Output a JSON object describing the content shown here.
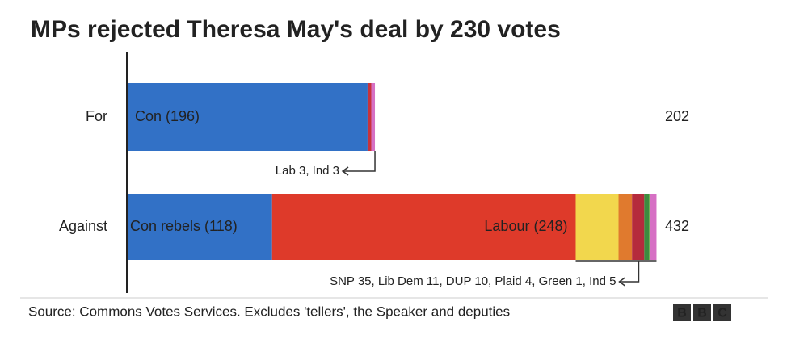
{
  "chart_data": {
    "type": "stacked-bar",
    "title": "MPs rejected Theresa May's deal by 230 votes",
    "categories": [
      "For",
      "Against"
    ],
    "bars": [
      {
        "segments": [
          {
            "value": 196,
            "value_label": "Con (196)",
            "color": "#3271c6"
          },
          {
            "value": 3,
            "color": "#c8333b"
          },
          {
            "value": 3,
            "color": "#d670c4"
          }
        ],
        "total": 202,
        "annotation": "Lab 3, Ind 3"
      },
      {
        "segments": [
          {
            "value": 118,
            "value_label": "Con rebels (118)",
            "color": "#3271c6"
          },
          {
            "value": 248,
            "value_label": "Labour (248)",
            "color": "#de3a2a"
          },
          {
            "value": 35,
            "color": "#f2d74d"
          },
          {
            "value": 11,
            "color": "#e07a2e"
          },
          {
            "value": 10,
            "color": "#b52b3c"
          },
          {
            "value": 4,
            "color": "#3d8c3f"
          },
          {
            "value": 1,
            "color": "#78b84f"
          },
          {
            "value": 5,
            "color": "#d670c4"
          }
        ],
        "total": 432,
        "annotation": "SNP 35, Lib Dem 11, DUP 10, Plaid 4, Green 1, Ind 5"
      }
    ],
    "source": "Source: Commons Votes Services. Excludes 'tellers', the Speaker and deputies",
    "logo": [
      "B",
      "B",
      "C"
    ]
  }
}
